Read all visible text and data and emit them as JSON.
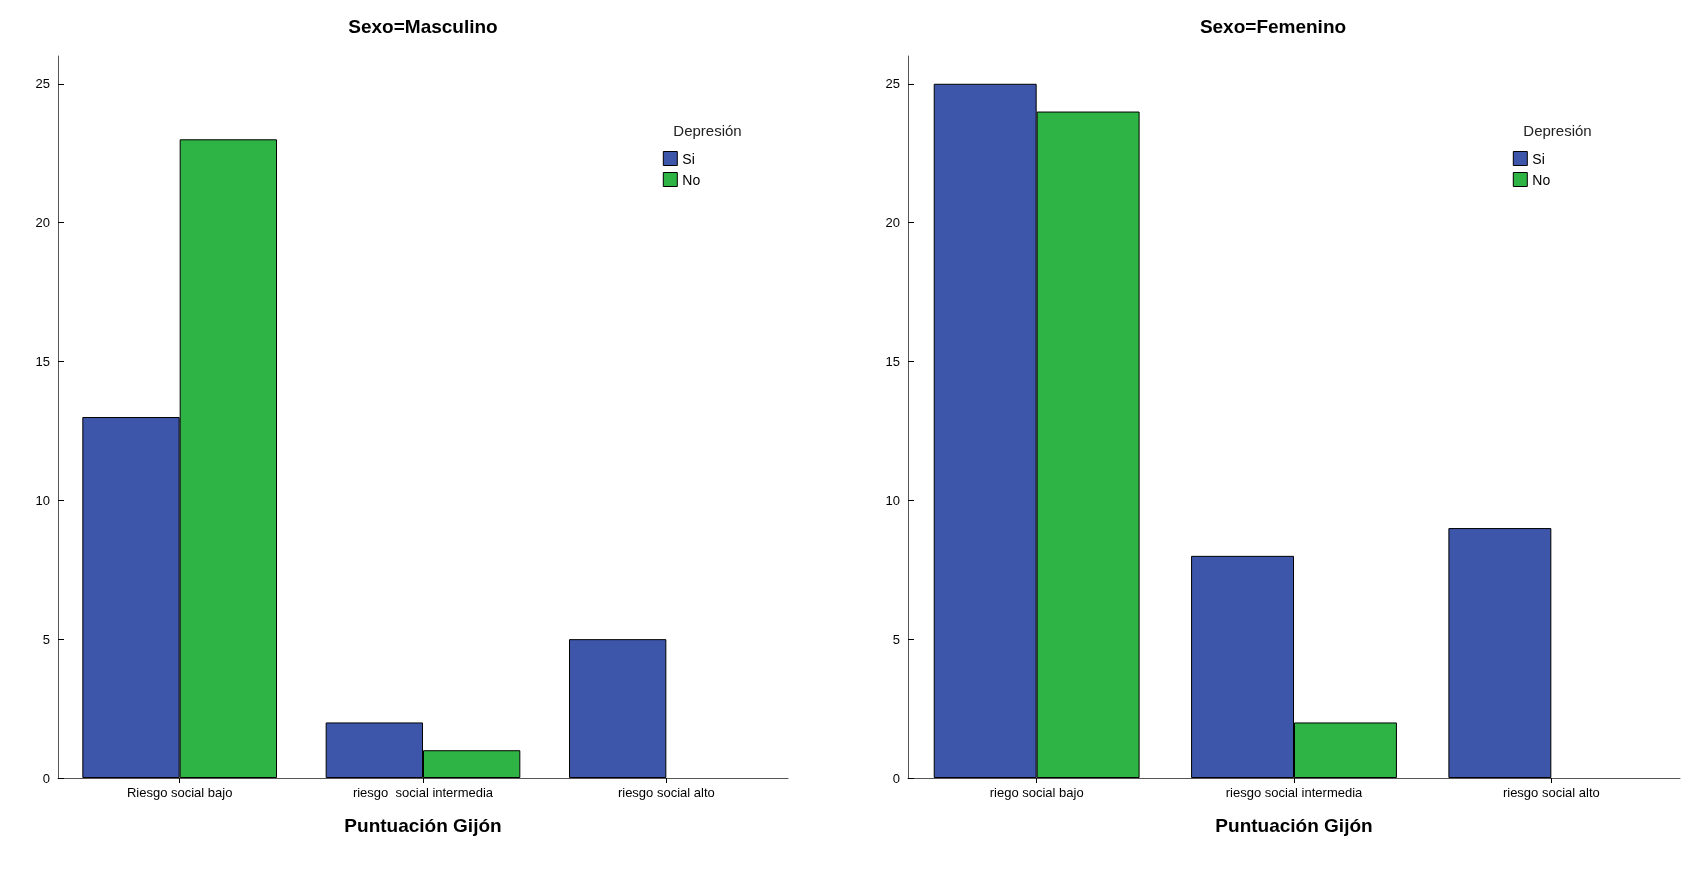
{
  "chart_data": [
    {
      "type": "bar",
      "title": "Sexo=Masculino",
      "xlabel": "Puntuación Gijón",
      "legend_title": "Depresión",
      "categories": [
        "Riesgo social bajo",
        "riesgo  social intermedia",
        "riesgo social alto"
      ],
      "series": [
        {
          "name": "Si",
          "color": "#3d56a9",
          "values": [
            13,
            2,
            5
          ]
        },
        {
          "name": "No",
          "color": "#2eb445",
          "values": [
            23,
            1,
            null
          ]
        }
      ],
      "ylim": [
        0,
        26
      ],
      "yticks": [
        0,
        5,
        10,
        15,
        20,
        25
      ],
      "grid": false,
      "legend": "top right"
    },
    {
      "type": "bar",
      "title": "Sexo=Femenino",
      "xlabel": "Puntuación Gijón",
      "legend_title": "Depresión",
      "categories": [
        "riego social bajo",
        "riesgo social intermedia",
        "riesgo social alto"
      ],
      "series": [
        {
          "name": "Si",
          "color": "#3d56a9",
          "values": [
            25,
            8,
            9
          ]
        },
        {
          "name": "No",
          "color": "#2eb445",
          "values": [
            24,
            2,
            null
          ]
        }
      ],
      "ylim": [
        0,
        26
      ],
      "yticks": [
        0,
        5,
        10,
        15,
        20,
        25
      ],
      "grid": false,
      "legend": "top right"
    }
  ]
}
